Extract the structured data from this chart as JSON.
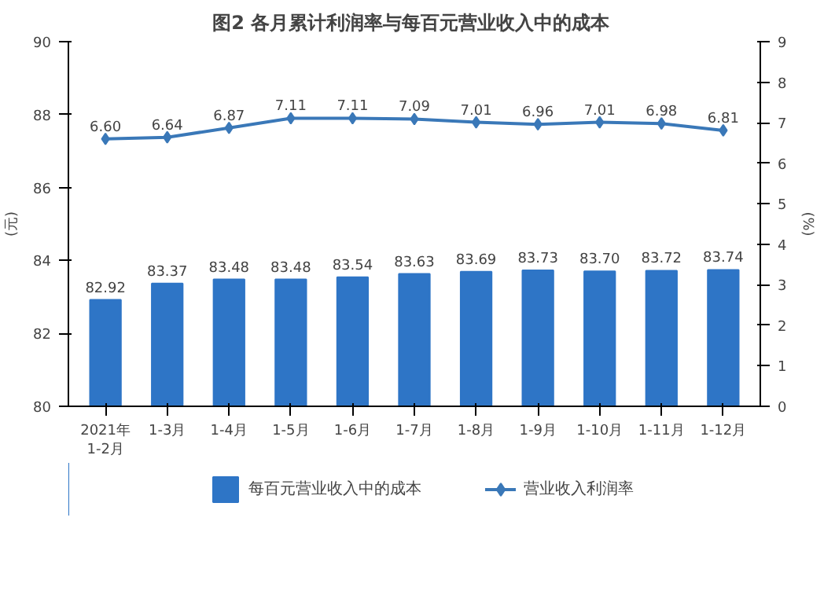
{
  "chart_data": {
    "type": "bar",
    "title": "图2  各月累计利润率与每百元营业收入中的成本",
    "categories": [
      "2021年\n1-2月",
      "1-3月",
      "1-4月",
      "1-5月",
      "1-6月",
      "1-7月",
      "1-8月",
      "1-9月",
      "1-10月",
      "1-11月",
      "1-12月"
    ],
    "series": [
      {
        "name": "每百元营业收入中的成本",
        "color": "#2e75c6",
        "values": [
          82.92,
          83.37,
          83.48,
          83.48,
          83.54,
          83.63,
          83.69,
          83.73,
          83.7,
          83.72,
          83.74
        ],
        "value_labels": [
          "82.92",
          "83.37",
          "83.48",
          "83.48",
          "83.54",
          "83.63",
          "83.69",
          "83.73",
          "83.70",
          "83.72",
          "83.74"
        ]
      },
      {
        "name": "营业收入利润率",
        "type": "line",
        "axis": "y2",
        "color": "#3a78b8",
        "marker": "diamond",
        "values": [
          6.6,
          6.64,
          6.87,
          7.11,
          7.11,
          7.09,
          7.01,
          6.96,
          7.01,
          6.98,
          6.81
        ],
        "value_labels": [
          "6.60",
          "6.64",
          "6.87",
          "7.11",
          "7.11",
          "7.09",
          "7.01",
          "6.96",
          "7.01",
          "6.98",
          "6.81"
        ]
      }
    ],
    "ylabel": "(元)",
    "y2label": "(%)",
    "ylim": [
      80,
      90
    ],
    "yticks": [
      80,
      82,
      84,
      86,
      88,
      90
    ],
    "y2lim": [
      0,
      9
    ],
    "y2ticks": [
      0,
      1,
      2,
      3,
      4,
      5,
      6,
      7,
      8,
      9
    ],
    "grid": false,
    "legend": "bottom"
  }
}
